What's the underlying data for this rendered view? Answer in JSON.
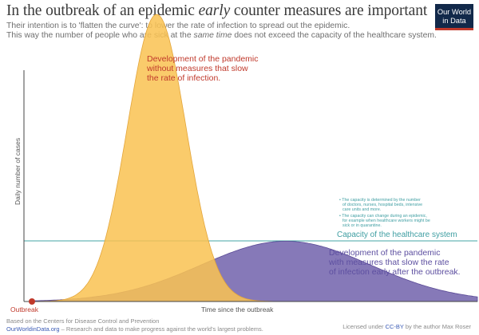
{
  "title": {
    "part1": "In the outbreak of an epidemic ",
    "emph": "early",
    "part2": " counter measures are important"
  },
  "subtitle": {
    "line1": "Their intention is to 'flatten the curve': to lower the rate of infection to spread out the epidemic.",
    "line2_a": "This way the number of people who are sick at the ",
    "line2_emph": "same time",
    "line2_b": " does not exceed the capacity of the healthcare system."
  },
  "logo": {
    "line1": "Our World",
    "line2": "in Data"
  },
  "axes": {
    "y_label": "Daily number of cases",
    "x_label": "Time since the outbreak",
    "origin_label": "Outbreak"
  },
  "annotations": {
    "no_measures": [
      "Development of the pandemic",
      "without measures that slow",
      "the rate of infection."
    ],
    "with_measures": [
      "Development of the pandemic",
      "with measures that slow the rate",
      "of infection early after the outbreak."
    ],
    "capacity_label": "Capacity of the healthcare system",
    "capacity_notes": [
      [
        "• The capacity is determined by the number",
        "of doctors, nurses, hospital beds, intensive",
        "care units and more."
      ],
      [
        "• The capacity can change during an epidemic,",
        "for example when healthcare workers might be",
        "sick or in quarantine."
      ]
    ]
  },
  "footer": {
    "source": "Based on the Centers for Disease Control and Prevention",
    "site": "OurWorldinData.org",
    "site_desc": " – Research and data to make progress against the world's largest problems.",
    "license_a": "Licensed under ",
    "license_link": "CC-BY",
    "license_b": " by the author Max Roser"
  },
  "colors": {
    "peak_fill": "#f9c353",
    "peak_stroke": "#e3a53a",
    "flat_fill": "#6b5ca8",
    "flat_stroke": "#5a4a96",
    "capacity_line": "#43a6a6",
    "red_text": "#c0392b",
    "purple_text": "#5d4fa0",
    "teal_text": "#3f9ea2",
    "axis": "#444444"
  },
  "curves": {
    "no_measures": {
      "peak_time": 0.28,
      "peak_height": 1.0,
      "spread": 0.066
    },
    "with_measures": {
      "peak_time": 0.57,
      "peak_height": 0.21,
      "spread": 0.19
    },
    "capacity_level": 0.25,
    "description": "Qualitative curves; the axes carry no scale or tick values."
  }
}
